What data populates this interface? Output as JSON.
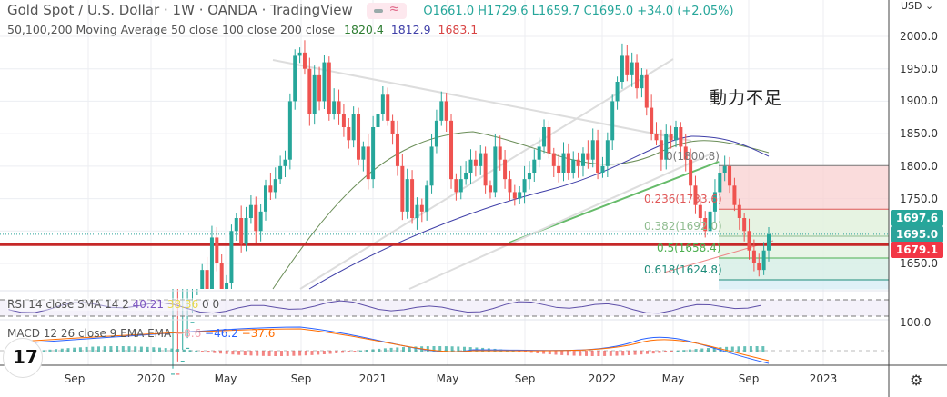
{
  "header": {
    "symbol": "Gold Spot / U.S. Dollar",
    "interval": "1W",
    "exchange": "OANDA",
    "source": "TradingView",
    "sep": "·",
    "ohlc": {
      "o_label": "O",
      "o": "1661.0",
      "h_label": "H",
      "h": "1729.6",
      "l_label": "L",
      "l": "1659.7",
      "c_label": "C",
      "c": "1695.0",
      "change": "+34.0 (+2.05%)"
    }
  },
  "indicators": {
    "ma": {
      "label": "50,100,200 Moving Average 50 close 100 close 200 close",
      "v50": "1820.4",
      "v100": "1812.9",
      "v200": "1683.1",
      "c50": "#2e7d32",
      "c100": "#3f3fa8",
      "c200": "#d84343"
    },
    "rsi": {
      "label": "RSI 14 close SMA 14 2",
      "v1": "40.21",
      "v2": "38.36",
      "v3": "0",
      "v4": "0"
    },
    "macd": {
      "label": "MACD 12 26 close 9 EMA EMA",
      "hist": "−8.6",
      "macd": "−46.2",
      "signal": "−37.6"
    }
  },
  "annotation": "動力不足",
  "currency_menu": "USD ⌄",
  "settings_icon": "gear-icon",
  "price_labels": [
    {
      "value": "1697.6",
      "color": "#26a69a"
    },
    {
      "value": "1695.0",
      "color": "#2ba39a"
    },
    {
      "value": "1679.1",
      "color": "#f23645"
    }
  ],
  "fib_levels": [
    {
      "label": "0(1800.8)",
      "ratio": 0,
      "price": 1800.8,
      "color": "#777777"
    },
    {
      "label": "0.236(1733.6)",
      "ratio": 0.236,
      "price": 1733.6,
      "color": "#e05757"
    },
    {
      "label": "0.382(1692.0)",
      "ratio": 0.382,
      "price": 1692.0,
      "color": "#8fbc8f"
    },
    {
      "label": "0.5(1658.4)",
      "ratio": 0.5,
      "price": 1658.4,
      "color": "#4caf50"
    },
    {
      "label": "0.618(1624.8)",
      "ratio": 0.618,
      "price": 1624.8,
      "color": "#1e8c7a"
    }
  ],
  "chart_data": {
    "type": "candlestick",
    "title": "Gold Spot / U.S. Dollar · 1W · OANDA",
    "y_axis": {
      "ticks": [
        1650,
        1700,
        1750,
        1800,
        1850,
        1900,
        1950,
        2000
      ],
      "tick_labels": [
        "1650.0",
        "1750.0",
        "1800.0",
        "1850.0",
        "1900.0",
        "1950.0",
        "2000.0"
      ],
      "range": [
        1610,
        2035
      ]
    },
    "x_axis": {
      "tick_labels": [
        "Sep",
        "2020",
        "May",
        "Sep",
        "2021",
        "May",
        "Sep",
        "2022",
        "May",
        "Sep",
        "2023"
      ]
    },
    "macd_axis_label": "100.0",
    "horizontal_line": 1679.1,
    "grid": true,
    "candles_close": [
      1480,
      1470,
      1500,
      1520,
      1560,
      1590,
      1640,
      1610,
      1690,
      1650,
      1580,
      1620,
      1700,
      1720,
      1680,
      1720,
      1740,
      1700,
      1730,
      1770,
      1760,
      1780,
      1800,
      1810,
      1900,
      1970,
      1975,
      1950,
      1880,
      1940,
      1900,
      1960,
      1880,
      1900,
      1880,
      1860,
      1840,
      1880,
      1810,
      1830,
      1780,
      1860,
      1880,
      1910,
      1870,
      1850,
      1800,
      1730,
      1780,
      1720,
      1740,
      1730,
      1770,
      1830,
      1870,
      1900,
      1870,
      1780,
      1760,
      1780,
      1790,
      1810,
      1800,
      1820,
      1770,
      1760,
      1830,
      1810,
      1780,
      1760,
      1750,
      1760,
      1780,
      1790,
      1810,
      1830,
      1860,
      1820,
      1800,
      1790,
      1820,
      1790,
      1810,
      1800,
      1820,
      1810,
      1840,
      1790,
      1800,
      1840,
      1900,
      1930,
      1970,
      1940,
      1960,
      1920,
      1940,
      1890,
      1850,
      1840,
      1810,
      1850,
      1840,
      1860,
      1830,
      1810,
      1770,
      1740,
      1720,
      1700,
      1730,
      1760,
      1790,
      1800,
      1770,
      1740,
      1720,
      1700,
      1670,
      1650,
      1640,
      1670,
      1695
    ]
  }
}
